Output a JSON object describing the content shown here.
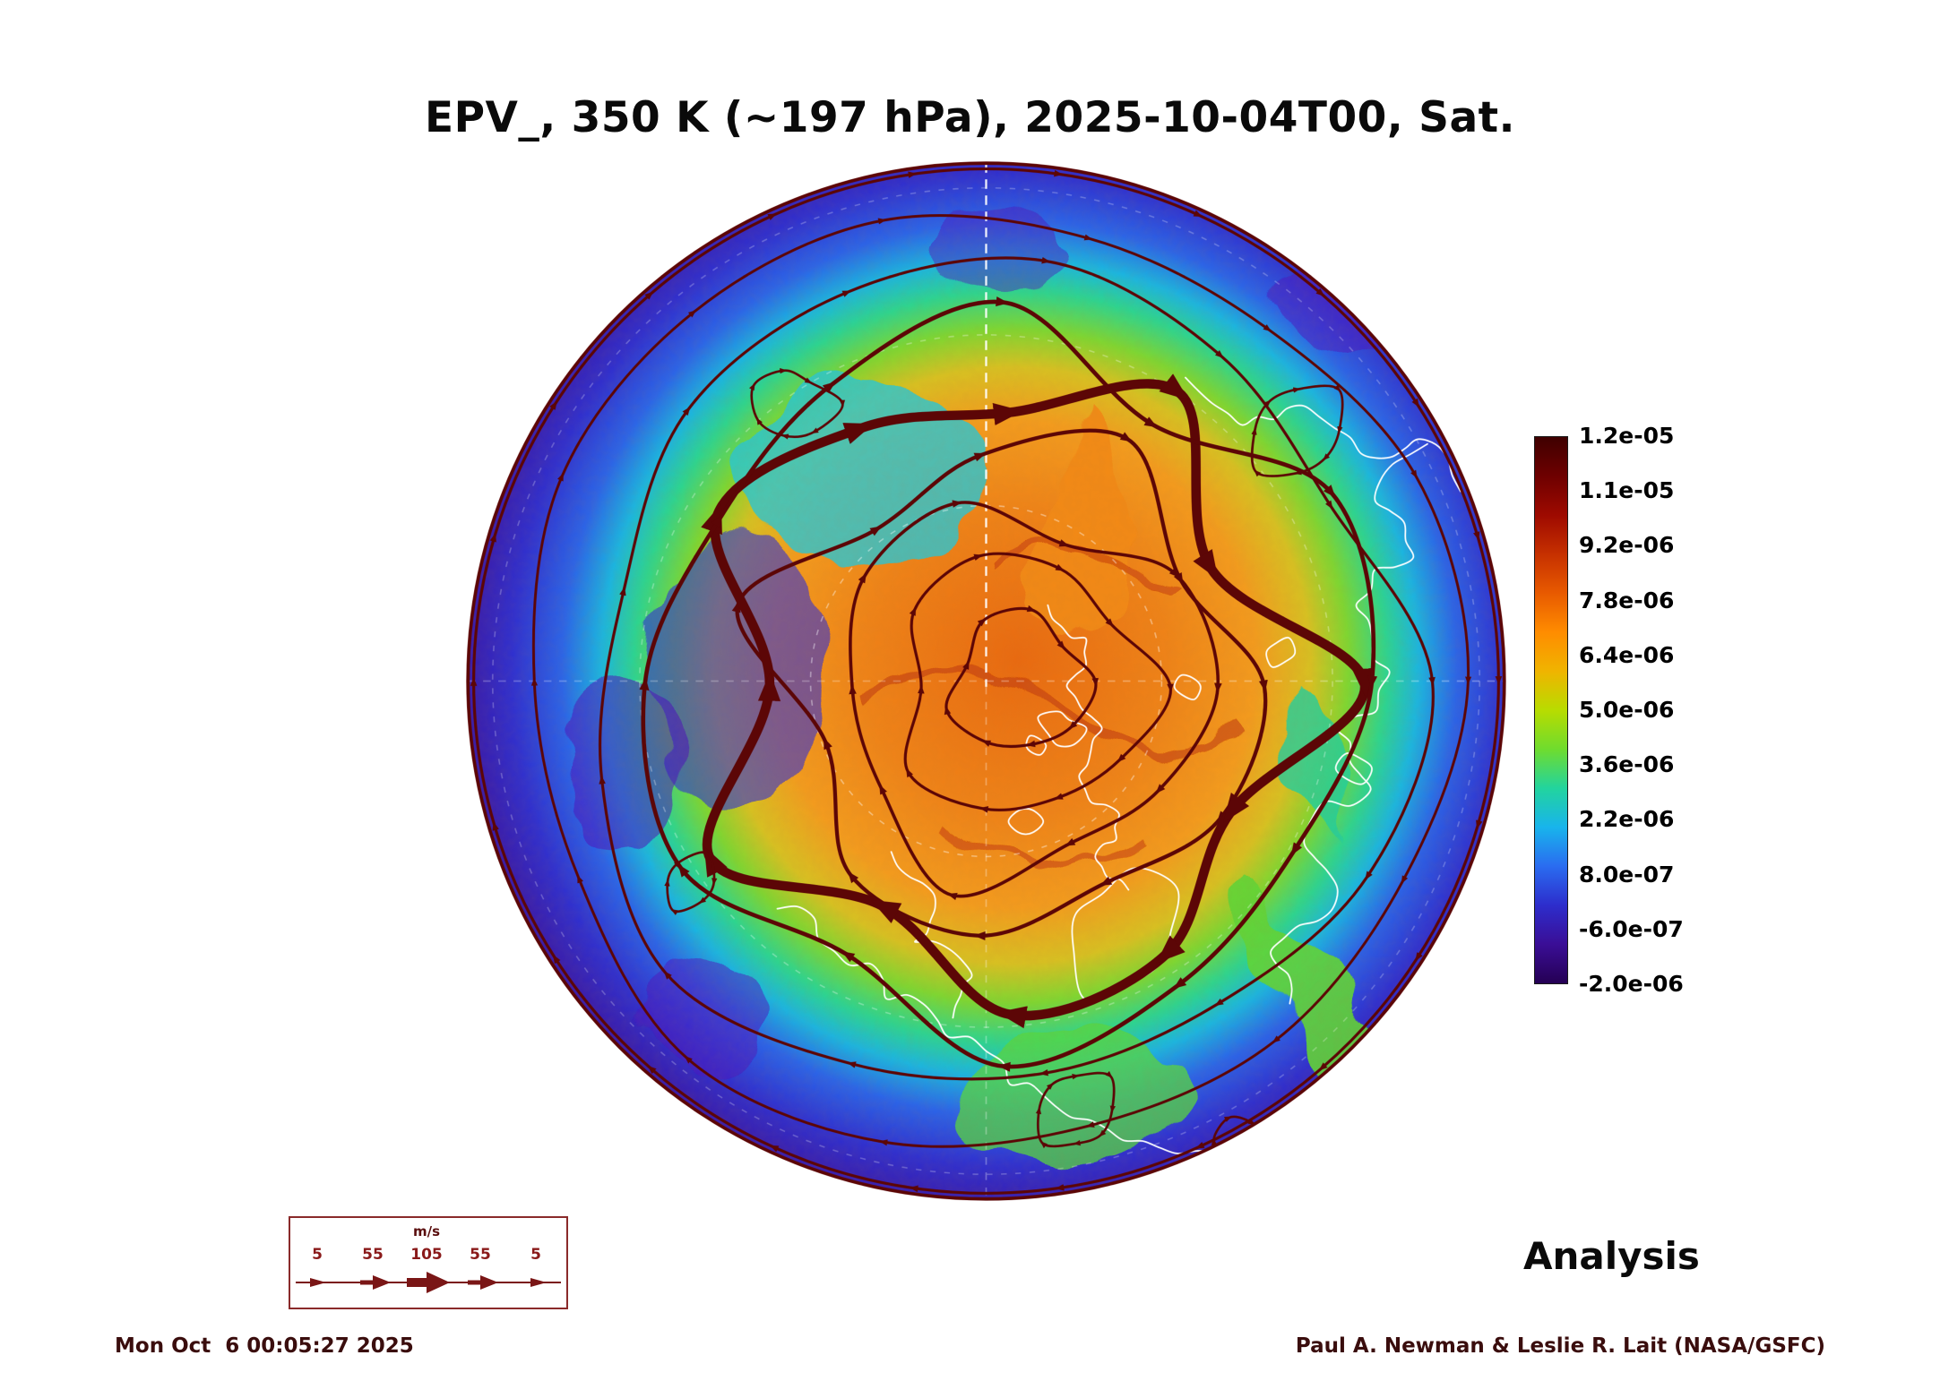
{
  "header": {
    "title": "EPV_, 350 K (~197 hPa), 2025-10-04T00, Sat."
  },
  "map": {
    "analysis_label": "Analysis"
  },
  "colorbar": {
    "ticks": [
      "1.2e-05",
      "1.1e-05",
      "9.2e-06",
      "7.8e-06",
      "6.4e-06",
      "5.0e-06",
      "3.6e-06",
      "2.2e-06",
      "8.0e-07",
      "-6.0e-07",
      "-2.0e-06"
    ],
    "colors": [
      "#3f0000",
      "#6e0000",
      "#9e0a00",
      "#c63000",
      "#e85a00",
      "#ff8c00",
      "#f0b400",
      "#b8dc00",
      "#6fdc2e",
      "#22d49e",
      "#18b4ec",
      "#2a6cf0",
      "#2d2dcc",
      "#3a0e96",
      "#250054"
    ],
    "streamline_color": "#5c0606",
    "coastline_color": "#ffffff"
  },
  "wind_legend": {
    "units_label": "m/s",
    "values": [
      "5",
      "55",
      "105",
      "55",
      "5"
    ]
  },
  "footer": {
    "timestamp": "Mon Oct  6 00:05:27 2025",
    "credit": "Paul A. Newman & Leslie R. Lait (NASA/GSFC)"
  },
  "chart_data": {
    "type": "heatmap",
    "title": "EPV_, 350 K (~197 hPa), 2025-10-04T00, Sat.",
    "quantity": "EPV (Ertel potential vorticity)",
    "level": "350 K (~197 hPa)",
    "valid_time": "2025-10-04T00",
    "mode": "Analysis",
    "projection": "Northern Hemisphere polar view (circular disk)",
    "colorbar_ticks": [
      1.2e-05,
      1.1e-05,
      9.2e-06,
      7.8e-06,
      6.4e-06,
      5e-06,
      3.6e-06,
      2.2e-06,
      8e-07,
      -6e-07,
      -2e-06
    ],
    "colorbar_range": [
      -2e-06,
      1.2e-05
    ],
    "colorbar_orientation": "vertical-right",
    "overlays": [
      "wind streamlines with arrowheads (dark maroon)",
      "coastlines (white)",
      "dashed white lat/lon graticule"
    ],
    "wind_legend_scale_ms": [
      5,
      55,
      105,
      55,
      5
    ],
    "field_structure": "high EPV (orange/red) over polar cap center, ring of green/cyan transition, low EPV (blue/purple) around the outer midlatitude rim",
    "annotation": "Analysis",
    "generated": "Mon Oct  6 00:05:27 2025",
    "credit": "Paul A. Newman & Leslie R. Lait (NASA/GSFC)"
  }
}
